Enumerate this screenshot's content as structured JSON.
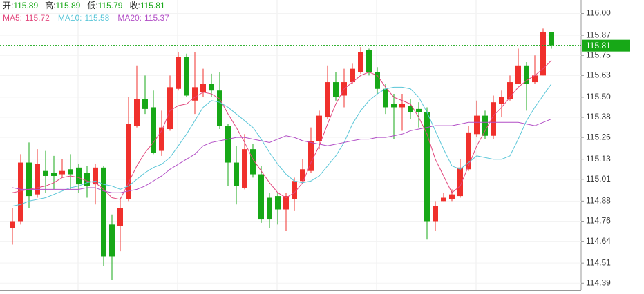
{
  "chart_data": {
    "type": "candlestick",
    "header": [
      {
        "label": "开:",
        "value": 115.89
      },
      {
        "label": "高:",
        "value": 115.89
      },
      {
        "label": "低:",
        "value": 115.79
      },
      {
        "label": "收:",
        "value": 115.81
      }
    ],
    "up_color": "#f0302c",
    "down_color": "#17a817",
    "open": [
      114.72,
      114.76,
      115.11,
      114.92,
      115.06,
      115.05,
      115.04,
      115.07,
      115.08,
      115.05,
      114.98,
      115.08,
      114.74,
      114.73,
      114.89,
      115.33,
      115.49,
      115.44,
      115.18,
      115.31,
      115.55,
      115.74,
      115.48,
      115.53,
      115.58,
      115.54,
      115.33,
      115.11,
      114.96,
      115.19,
      115.04,
      114.9,
      114.91,
      114.83,
      114.89,
      115.0,
      115.06,
      115.24,
      115.38,
      115.59,
      115.51,
      115.59,
      115.65,
      115.78,
      115.65,
      115.55,
      115.46,
      115.44,
      115.45,
      115.43,
      115.41,
      114.76,
      114.88,
      114.89,
      114.91,
      115.07,
      115.28,
      115.39,
      115.27,
      115.46,
      115.49,
      115.58,
      115.69,
      115.59,
      115.63,
      115.89
    ],
    "high": [
      114.84,
      115.16,
      115.23,
      115.19,
      115.18,
      115.15,
      115.13,
      115.16,
      115.1,
      115.09,
      115.1,
      115.09,
      114.8,
      114.9,
      115.5,
      115.69,
      115.63,
      115.54,
      115.42,
      115.63,
      115.77,
      115.76,
      115.77,
      115.67,
      115.64,
      115.65,
      115.34,
      115.21,
      115.28,
      115.22,
      115.09,
      114.93,
      114.93,
      114.93,
      115.02,
      115.13,
      115.32,
      115.42,
      115.69,
      115.65,
      115.67,
      115.7,
      115.8,
      115.79,
      115.68,
      115.58,
      115.52,
      115.52,
      115.49,
      115.47,
      115.44,
      114.88,
      114.93,
      114.95,
      115.13,
      115.33,
      115.48,
      115.42,
      115.51,
      115.54,
      115.63,
      115.79,
      115.71,
      115.75,
      115.91,
      115.89
    ],
    "low": [
      114.62,
      114.74,
      114.84,
      114.9,
      114.93,
      114.95,
      115.02,
      114.95,
      114.93,
      114.9,
      114.86,
      114.49,
      114.41,
      114.58,
      114.88,
      115.32,
      115.4,
      115.16,
      115.15,
      115.3,
      115.54,
      115.5,
      115.4,
      115.5,
      115.5,
      115.31,
      114.97,
      114.86,
      114.95,
      115.02,
      114.75,
      114.72,
      114.74,
      114.7,
      114.82,
      114.99,
      115.05,
      115.19,
      115.37,
      115.48,
      115.44,
      115.58,
      115.64,
      115.63,
      115.52,
      115.4,
      115.25,
      115.3,
      115.37,
      115.32,
      114.65,
      114.7,
      114.88,
      114.88,
      114.9,
      115.06,
      115.26,
      115.25,
      115.25,
      115.38,
      115.48,
      115.58,
      115.42,
      115.58,
      115.63,
      115.79
    ],
    "close": [
      114.76,
      115.11,
      114.91,
      115.1,
      115.03,
      115.03,
      115.06,
      115.04,
      114.98,
      114.97,
      115.08,
      114.55,
      114.55,
      114.84,
      115.34,
      115.49,
      115.43,
      115.17,
      115.32,
      115.56,
      115.74,
      115.51,
      115.56,
      115.58,
      115.54,
      115.33,
      115.11,
      114.97,
      115.19,
      115.04,
      114.77,
      114.77,
      114.83,
      114.91,
      115.0,
      115.07,
      115.24,
      115.39,
      115.59,
      115.5,
      115.59,
      115.67,
      115.77,
      115.65,
      115.55,
      115.44,
      115.44,
      115.46,
      115.41,
      115.41,
      114.76,
      114.85,
      114.9,
      114.92,
      115.08,
      115.29,
      115.39,
      115.27,
      115.47,
      115.5,
      115.59,
      115.69,
      115.58,
      115.63,
      115.89,
      115.81
    ],
    "series": [
      {
        "name": "MA5:",
        "value": 115.72,
        "color": "#e2467c",
        "values": [
          114.93,
          114.94,
          114.95,
          114.96,
          114.97,
          114.99,
          115.02,
          115.03,
          115.02,
          115.0,
          114.99,
          114.95,
          114.9,
          114.89,
          114.99,
          115.09,
          115.17,
          115.23,
          115.3,
          115.42,
          115.45,
          115.46,
          115.5,
          115.53,
          115.52,
          115.49,
          115.4,
          115.32,
          115.23,
          115.13,
          115.06,
          114.99,
          114.93,
          114.9,
          114.93,
          114.99,
          115.11,
          115.21,
          115.34,
          115.46,
          115.55,
          115.59,
          115.63,
          115.65,
          115.63,
          115.56,
          115.5,
          115.48,
          115.46,
          115.38,
          115.28,
          115.13,
          115.03,
          114.93,
          114.97,
          115.09,
          115.21,
          115.3,
          115.39,
          115.44,
          115.5,
          115.56,
          115.6,
          115.63,
          115.67,
          115.72
        ]
      },
      {
        "name": "MA10:",
        "value": 115.58,
        "color": "#5ac6d8",
        "values": [
          114.85,
          114.86,
          114.88,
          114.89,
          114.9,
          114.92,
          114.94,
          114.96,
          114.97,
          114.99,
          115.0,
          114.98,
          114.97,
          114.95,
          114.97,
          115.01,
          115.05,
          115.08,
          115.1,
          115.14,
          115.21,
          115.28,
          115.36,
          115.44,
          115.48,
          115.47,
          115.44,
          115.4,
          115.36,
          115.32,
          115.25,
          115.17,
          115.1,
          115.04,
          115.0,
          114.99,
          115.0,
          115.03,
          115.09,
          115.15,
          115.23,
          115.34,
          115.42,
          115.48,
          115.52,
          115.55,
          115.56,
          115.56,
          115.55,
          115.5,
          115.41,
          115.3,
          115.19,
          115.09,
          115.07,
          115.11,
          115.15,
          115.14,
          115.13,
          115.13,
          115.15,
          115.25,
          115.36,
          115.44,
          115.51,
          115.58
        ]
      },
      {
        "name": "MA20:",
        "value": 115.37,
        "color": "#b24ec6",
        "values": [
          114.96,
          114.95,
          114.95,
          114.95,
          114.95,
          114.95,
          114.95,
          114.95,
          114.95,
          114.96,
          114.96,
          114.94,
          114.93,
          114.93,
          114.94,
          114.95,
          114.97,
          115.0,
          115.03,
          115.07,
          115.1,
          115.13,
          115.16,
          115.21,
          115.23,
          115.24,
          115.25,
          115.26,
          115.26,
          115.25,
          115.24,
          115.23,
          115.25,
          115.27,
          115.26,
          115.24,
          115.23,
          115.22,
          115.21,
          115.22,
          115.23,
          115.24,
          115.25,
          115.25,
          115.26,
          115.26,
          115.27,
          115.28,
          115.3,
          115.31,
          115.32,
          115.33,
          115.33,
          115.33,
          115.34,
          115.35,
          115.35,
          115.35,
          115.35,
          115.35,
          115.35,
          115.35,
          115.34,
          115.33,
          115.35,
          115.37
        ]
      }
    ],
    "last_price": 115.81,
    "ylim": [
      114.35,
      116.06
    ],
    "yticks": [
      {
        "value": 116,
        "label": "116.00"
      },
      115.87,
      115.75,
      115.63,
      {
        "value": 115.5,
        "label": "115.50"
      },
      115.38,
      115.26,
      115.13,
      115.01,
      114.88,
      114.76,
      114.64,
      114.51,
      114.39
    ],
    "grid": true
  }
}
